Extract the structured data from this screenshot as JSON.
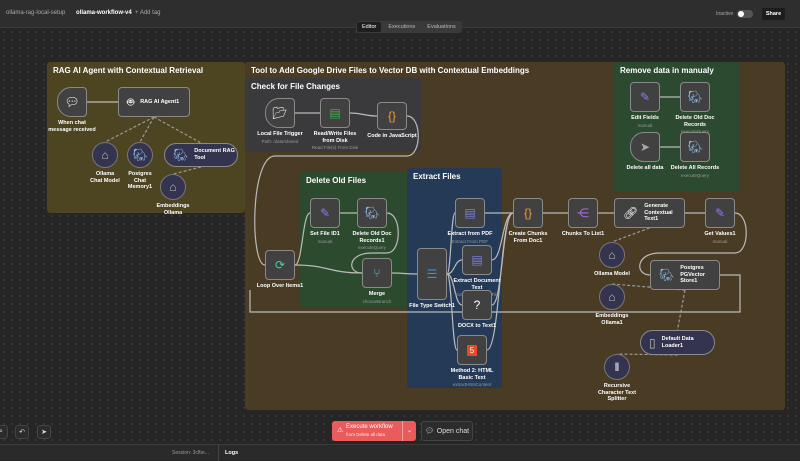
{
  "header": {
    "breadcrumb_project": "ollama-rag-local-setup",
    "workflow_name": "ollama-workflow-v4",
    "add_tag": "+ Add tag",
    "status_label": "Inactive",
    "active": false,
    "share_label": "Share"
  },
  "tabs": [
    {
      "label": "Editor",
      "active": true
    },
    {
      "label": "Executions"
    },
    {
      "label": "Evaluations"
    }
  ],
  "stickies": [
    {
      "title": "RAG AI Agent with Contextual Retrieval",
      "color": "#4d4422"
    },
    {
      "title": "Tool to Add Google Drive Files to Vector DB with Contextual Embeddings",
      "color": "#4a3b24"
    },
    {
      "title": "Check for File Changes",
      "color": "#3a3a3c"
    },
    {
      "title": "Remove data in manualy",
      "color": "#2c4a2f"
    },
    {
      "title": "Delete Old Files",
      "color": "#2b4a2e"
    },
    {
      "title": "Extract Files",
      "color": "#243a57"
    }
  ],
  "nodes": [
    {
      "label": "When chat message received",
      "icon": "chat-icon"
    },
    {
      "label": "RAG AI Agent1",
      "icon": "robot-icon"
    },
    {
      "label": "Ollama Chat Model",
      "icon": "ollama-icon"
    },
    {
      "label": "Postgres Chat Memory1",
      "icon": "postgres-icon"
    },
    {
      "label": "Document RAG Tool",
      "icon": "postgres-icon"
    },
    {
      "label": "Embeddings Ollama",
      "icon": "ollama-icon"
    },
    {
      "label": "Local File Trigger",
      "sub": "Path: /data/shared",
      "icon": "folder-icon"
    },
    {
      "label": "Read/Write Files from Disk",
      "sub": "Read File(s) From Disk",
      "icon": "file-icon"
    },
    {
      "label": "Code in JavaScript",
      "icon": "code-icon"
    },
    {
      "label": "Edit Fields",
      "sub": "manual",
      "icon": "pencil-icon"
    },
    {
      "label": "Delete Old Doc Records",
      "sub": "executeQuery",
      "icon": "postgres-icon"
    },
    {
      "label": "Delete all data",
      "icon": "cursor-icon"
    },
    {
      "label": "Delete All Records",
      "sub": "executeQuery",
      "icon": "postgres-icon"
    },
    {
      "label": "Loop Over Items1",
      "icon": "loop-icon"
    },
    {
      "label": "Set File ID1",
      "sub": "manual",
      "icon": "pencil-icon"
    },
    {
      "label": "Delete Old Doc Records1",
      "sub": "executeQuery",
      "icon": "postgres-icon"
    },
    {
      "label": "Merge",
      "sub": "chooseBranch",
      "icon": "merge-icon"
    },
    {
      "label": "File Type Switch1",
      "icon": "switch-icon"
    },
    {
      "label": "Extract from PDF",
      "sub": "Extract From PDF",
      "icon": "extract-icon"
    },
    {
      "label": "Extract Document Text",
      "sub": "Extract From Text File",
      "icon": "extract-icon"
    },
    {
      "label": "DOCX to Text1",
      "icon": "question-icon"
    },
    {
      "label": "Method 2: HTML Basic Text",
      "sub": "extractHtmlContent",
      "icon": "html5-icon"
    },
    {
      "label": "Create Chunks From Doc1",
      "icon": "code-icon"
    },
    {
      "label": "Chunks To List1",
      "icon": "split-icon"
    },
    {
      "label": "Generate Contextual Text1",
      "icon": "link-icon"
    },
    {
      "label": "Get Values1",
      "sub": "manual",
      "icon": "pencil-icon"
    },
    {
      "label": "Ollama Model",
      "icon": "ollama-icon"
    },
    {
      "label": "Postgres PGVector Store1",
      "icon": "postgres-icon"
    },
    {
      "label": "Embeddings Ollama1",
      "icon": "ollama-icon"
    },
    {
      "label": "Default Data Loader1",
      "icon": "document-icon"
    },
    {
      "label": "Recursive Character Text Splitter",
      "icon": "splitter-icon"
    }
  ],
  "footer": {
    "execute_label": "Execute workflow",
    "execute_sub": "from Delete all data",
    "open_chat": "Open chat",
    "session": "Session: 3cfbe...",
    "logs": "Logs"
  },
  "colors": {
    "execute": "#ea5b5b",
    "canvas": "#262626"
  }
}
